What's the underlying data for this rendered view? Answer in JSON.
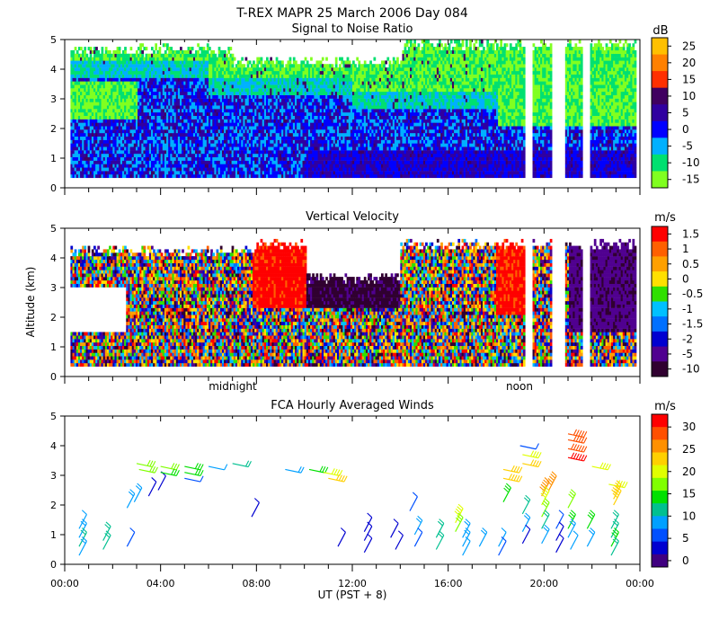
{
  "chart_data": [
    {
      "type": "heatmap",
      "id": "snr",
      "title": "T-REX   MAPR 25 March 2006 Day 084",
      "subtitle": "Signal to Noise Ratio",
      "ylim": [
        0,
        5
      ],
      "yticks": [
        "0",
        "1",
        "2",
        "3",
        "4",
        "5"
      ],
      "colorbar": {
        "unit": "dB",
        "labels": [
          "25",
          "20",
          "15",
          "10",
          "5",
          "0",
          "-5",
          "-10",
          "-15"
        ],
        "colors": [
          "#ffc000",
          "#ff8000",
          "#ff3000",
          "#400060",
          "#3000a0",
          "#0000ff",
          "#00b0ff",
          "#00e070",
          "#80ff20"
        ]
      }
    },
    {
      "type": "heatmap",
      "id": "vv",
      "title": "Vertical Velocity",
      "ylabel": "Altitude (km)",
      "ylim": [
        0,
        5
      ],
      "yticks": [
        "0",
        "1",
        "2",
        "3",
        "4",
        "5"
      ],
      "markers": [
        {
          "label": "midnight",
          "x": 8
        },
        {
          "label": "noon",
          "x": 20
        }
      ],
      "colorbar": {
        "unit": "m/s",
        "labels": [
          "1.5",
          "1",
          "0.5",
          "0",
          "-0.5",
          "-1",
          "-1.5",
          "-2",
          "-5",
          "-10"
        ],
        "colors": [
          "#ff0000",
          "#ff6000",
          "#ffa000",
          "#ffe000",
          "#30e000",
          "#00c0ff",
          "#0070ff",
          "#0000d0",
          "#500090",
          "#300030"
        ]
      }
    },
    {
      "type": "scatter",
      "id": "winds",
      "title": "FCA Hourly Averaged Winds",
      "xlabel": "UT  (PST + 8)",
      "xlim": [
        0,
        24
      ],
      "ylim": [
        0,
        5
      ],
      "xticks": [
        "00:00",
        "04:00",
        "08:00",
        "12:00",
        "16:00",
        "20:00",
        "00:00"
      ],
      "yticks": [
        "0",
        "1",
        "2",
        "3",
        "4",
        "5"
      ],
      "colorbar": {
        "unit": "m/s",
        "labels": [
          "30",
          "25",
          "20",
          "15",
          "10",
          "5",
          "0"
        ],
        "colors": [
          "#ff0000",
          "#ff5000",
          "#ff9000",
          "#ffd000",
          "#e0ff00",
          "#80ff00",
          "#00e000",
          "#00c090",
          "#00a0ff",
          "#0050ff",
          "#0000d0",
          "#400080"
        ]
      },
      "barbs": [
        {
          "x": 0.6,
          "y": 1.2,
          "s": 7
        },
        {
          "x": 0.6,
          "y": 0.9,
          "s": 8
        },
        {
          "x": 0.6,
          "y": 0.6,
          "s": 10
        },
        {
          "x": 0.6,
          "y": 0.3,
          "s": 9
        },
        {
          "x": 1.6,
          "y": 0.8,
          "s": 11
        },
        {
          "x": 1.6,
          "y": 0.5,
          "s": 11
        },
        {
          "x": 2.6,
          "y": 0.6,
          "s": 5
        },
        {
          "x": 2.6,
          "y": 1.9,
          "s": 8
        },
        {
          "x": 2.9,
          "y": 2.1,
          "s": 9
        },
        {
          "x": 3.0,
          "y": 3.4,
          "s": 17
        },
        {
          "x": 3.1,
          "y": 3.2,
          "s": 16
        },
        {
          "x": 3.5,
          "y": 2.3,
          "s": 4
        },
        {
          "x": 3.9,
          "y": 2.5,
          "s": 4
        },
        {
          "x": 4.0,
          "y": 3.3,
          "s": 16
        },
        {
          "x": 4.0,
          "y": 3.1,
          "s": 15
        },
        {
          "x": 5.0,
          "y": 3.3,
          "s": 14
        },
        {
          "x": 5.0,
          "y": 3.1,
          "s": 14
        },
        {
          "x": 5.0,
          "y": 2.9,
          "s": 6
        },
        {
          "x": 6.0,
          "y": 3.3,
          "s": 7
        },
        {
          "x": 7.0,
          "y": 3.4,
          "s": 12
        },
        {
          "x": 7.8,
          "y": 1.6,
          "s": 4
        },
        {
          "x": 9.2,
          "y": 3.2,
          "s": 9
        },
        {
          "x": 10.2,
          "y": 3.2,
          "s": 15
        },
        {
          "x": 10.8,
          "y": 3.1,
          "s": 20
        },
        {
          "x": 11.0,
          "y": 2.9,
          "s": 21
        },
        {
          "x": 11.4,
          "y": 0.6,
          "s": 4
        },
        {
          "x": 12.5,
          "y": 1.1,
          "s": 4
        },
        {
          "x": 12.5,
          "y": 0.8,
          "s": 3
        },
        {
          "x": 12.5,
          "y": 0.4,
          "s": 3
        },
        {
          "x": 13.6,
          "y": 0.9,
          "s": 4
        },
        {
          "x": 13.8,
          "y": 0.5,
          "s": 4
        },
        {
          "x": 14.4,
          "y": 1.8,
          "s": 5
        },
        {
          "x": 14.6,
          "y": 1.0,
          "s": 8
        },
        {
          "x": 14.6,
          "y": 0.6,
          "s": 6
        },
        {
          "x": 15.5,
          "y": 0.9,
          "s": 10
        },
        {
          "x": 15.5,
          "y": 0.5,
          "s": 11
        },
        {
          "x": 16.3,
          "y": 1.4,
          "s": 18
        },
        {
          "x": 16.3,
          "y": 1.1,
          "s": 17
        },
        {
          "x": 16.6,
          "y": 0.9,
          "s": 9
        },
        {
          "x": 16.6,
          "y": 0.6,
          "s": 8
        },
        {
          "x": 16.6,
          "y": 0.3,
          "s": 7
        },
        {
          "x": 17.3,
          "y": 0.6,
          "s": 9
        },
        {
          "x": 18.1,
          "y": 0.6,
          "s": 7
        },
        {
          "x": 18.1,
          "y": 0.3,
          "s": 5
        },
        {
          "x": 18.3,
          "y": 3.2,
          "s": 22
        },
        {
          "x": 18.3,
          "y": 2.9,
          "s": 23
        },
        {
          "x": 18.3,
          "y": 2.1,
          "s": 15
        },
        {
          "x": 19.0,
          "y": 4.0,
          "s": 6
        },
        {
          "x": 19.1,
          "y": 3.7,
          "s": 20
        },
        {
          "x": 19.1,
          "y": 3.4,
          "s": 21
        },
        {
          "x": 19.1,
          "y": 1.7,
          "s": 10
        },
        {
          "x": 19.1,
          "y": 1.1,
          "s": 8
        },
        {
          "x": 19.1,
          "y": 0.7,
          "s": 4
        },
        {
          "x": 19.9,
          "y": 2.3,
          "s": 24
        },
        {
          "x": 19.9,
          "y": 2.0,
          "s": 18
        },
        {
          "x": 19.9,
          "y": 1.6,
          "s": 16
        },
        {
          "x": 19.9,
          "y": 1.2,
          "s": 12
        },
        {
          "x": 19.9,
          "y": 0.7,
          "s": 8
        },
        {
          "x": 20.2,
          "y": 2.5,
          "s": 24
        },
        {
          "x": 20.5,
          "y": 1.2,
          "s": 5
        },
        {
          "x": 20.5,
          "y": 0.8,
          "s": 4
        },
        {
          "x": 20.5,
          "y": 0.4,
          "s": 3
        },
        {
          "x": 21.0,
          "y": 4.4,
          "s": 27
        },
        {
          "x": 21.0,
          "y": 4.2,
          "s": 26
        },
        {
          "x": 21.0,
          "y": 3.9,
          "s": 28
        },
        {
          "x": 21.0,
          "y": 3.6,
          "s": 30
        },
        {
          "x": 21.0,
          "y": 1.9,
          "s": 16
        },
        {
          "x": 21.0,
          "y": 1.2,
          "s": 14
        },
        {
          "x": 21.0,
          "y": 0.9,
          "s": 8
        },
        {
          "x": 21.1,
          "y": 0.5,
          "s": 7
        },
        {
          "x": 21.8,
          "y": 1.2,
          "s": 14
        },
        {
          "x": 21.8,
          "y": 0.6,
          "s": 8
        },
        {
          "x": 22.0,
          "y": 3.3,
          "s": 20
        },
        {
          "x": 22.7,
          "y": 2.7,
          "s": 20
        },
        {
          "x": 22.9,
          "y": 2.2,
          "s": 23
        },
        {
          "x": 22.9,
          "y": 2.0,
          "s": 22
        },
        {
          "x": 22.8,
          "y": 1.2,
          "s": 11
        },
        {
          "x": 22.8,
          "y": 0.9,
          "s": 12
        },
        {
          "x": 22.8,
          "y": 0.6,
          "s": 13
        },
        {
          "x": 22.8,
          "y": 0.3,
          "s": 11
        }
      ]
    }
  ]
}
